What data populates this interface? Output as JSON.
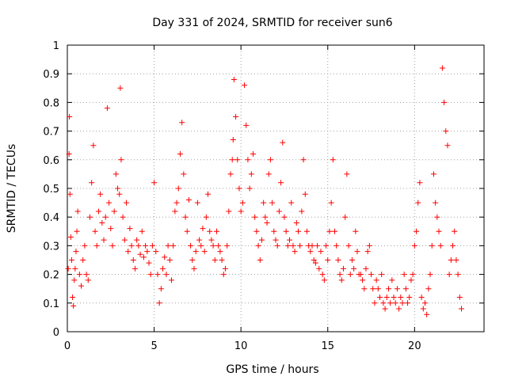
{
  "chart_data": {
    "type": "scatter",
    "title": "Day 331 of 2024, SRMTID for receiver sun6",
    "xlabel": "GPS time / hours",
    "ylabel": "SRMTID / TECUs",
    "xlim": [
      0,
      24
    ],
    "ylim": [
      0,
      1
    ],
    "x_ticks": [
      0,
      5,
      10,
      15,
      20
    ],
    "x_tick_labels": [
      "0",
      "5",
      "10",
      "15",
      "20"
    ],
    "y_ticks": [
      0,
      0.1,
      0.2,
      0.3,
      0.4,
      0.5,
      0.6,
      0.7,
      0.8,
      0.9,
      1
    ],
    "y_tick_labels": [
      "0",
      "0.1",
      "0.2",
      "0.3",
      "0.4",
      "0.5",
      "0.6",
      "0.7",
      "0.8",
      "0.9",
      "1"
    ],
    "grid": true,
    "marker": "plus",
    "marker_color": "#ff0000",
    "series": [
      {
        "name": "SRMTID",
        "color": "#ff0000",
        "x": [
          0.05,
          0.1,
          0.12,
          0.15,
          0.2,
          0.25,
          0.3,
          0.35,
          0.4,
          0.45,
          0.5,
          0.55,
          0.6,
          0.7,
          0.8,
          0.9,
          1.0,
          1.1,
          1.2,
          1.3,
          1.4,
          1.5,
          1.6,
          1.7,
          1.8,
          1.9,
          2.0,
          2.1,
          2.2,
          2.3,
          2.4,
          2.5,
          2.6,
          2.7,
          2.8,
          2.9,
          3.0,
          3.05,
          3.1,
          3.2,
          3.3,
          3.4,
          3.5,
          3.6,
          3.7,
          3.8,
          3.9,
          4.0,
          4.1,
          4.2,
          4.3,
          4.4,
          4.5,
          4.6,
          4.7,
          4.8,
          4.9,
          5.0,
          5.1,
          5.2,
          5.3,
          5.4,
          5.5,
          5.6,
          5.7,
          5.8,
          5.9,
          6.0,
          6.1,
          6.2,
          6.3,
          6.4,
          6.5,
          6.6,
          6.7,
          6.8,
          6.9,
          7.0,
          7.1,
          7.2,
          7.3,
          7.4,
          7.5,
          7.6,
          7.7,
          7.8,
          7.9,
          8.0,
          8.1,
          8.2,
          8.3,
          8.4,
          8.5,
          8.6,
          8.7,
          8.8,
          8.9,
          9.0,
          9.1,
          9.2,
          9.3,
          9.4,
          9.5,
          9.55,
          9.6,
          9.7,
          9.8,
          9.9,
          10.0,
          10.1,
          10.2,
          10.3,
          10.4,
          10.5,
          10.6,
          10.7,
          10.8,
          10.9,
          11.0,
          11.1,
          11.2,
          11.3,
          11.4,
          11.5,
          11.6,
          11.7,
          11.8,
          11.9,
          12.0,
          12.1,
          12.2,
          12.3,
          12.4,
          12.5,
          12.6,
          12.7,
          12.8,
          12.9,
          13.0,
          13.1,
          13.2,
          13.3,
          13.4,
          13.5,
          13.6,
          13.7,
          13.8,
          13.9,
          14.0,
          14.1,
          14.2,
          14.3,
          14.4,
          14.5,
          14.6,
          14.7,
          14.8,
          14.9,
          15.0,
          15.1,
          15.2,
          15.3,
          15.4,
          15.5,
          15.6,
          15.7,
          15.8,
          15.9,
          16.0,
          16.1,
          16.2,
          16.3,
          16.4,
          16.5,
          16.6,
          16.7,
          16.8,
          16.9,
          17.0,
          17.1,
          17.2,
          17.3,
          17.4,
          17.5,
          17.6,
          17.7,
          17.8,
          17.9,
          18.0,
          18.1,
          18.2,
          18.3,
          18.4,
          18.5,
          18.6,
          18.7,
          18.8,
          18.9,
          19.0,
          19.1,
          19.2,
          19.3,
          19.4,
          19.5,
          19.6,
          19.7,
          19.8,
          19.9,
          20.0,
          20.1,
          20.2,
          20.3,
          20.4,
          20.5,
          20.6,
          20.7,
          20.8,
          20.9,
          21.0,
          21.1,
          21.2,
          21.3,
          21.4,
          21.5,
          21.6,
          21.7,
          21.8,
          21.9,
          22.0,
          22.1,
          22.2,
          22.3,
          22.4,
          22.5,
          22.6,
          22.7
        ],
        "y": [
          0.22,
          0.62,
          0.75,
          0.48,
          0.33,
          0.25,
          0.12,
          0.09,
          0.18,
          0.22,
          0.28,
          0.35,
          0.42,
          0.2,
          0.16,
          0.25,
          0.3,
          0.2,
          0.18,
          0.4,
          0.52,
          0.65,
          0.35,
          0.3,
          0.42,
          0.48,
          0.38,
          0.32,
          0.4,
          0.78,
          0.45,
          0.36,
          0.3,
          0.42,
          0.55,
          0.5,
          0.48,
          0.85,
          0.6,
          0.4,
          0.32,
          0.45,
          0.28,
          0.36,
          0.3,
          0.25,
          0.22,
          0.32,
          0.3,
          0.27,
          0.35,
          0.26,
          0.3,
          0.28,
          0.24,
          0.2,
          0.3,
          0.52,
          0.28,
          0.2,
          0.1,
          0.15,
          0.22,
          0.26,
          0.2,
          0.3,
          0.25,
          0.18,
          0.3,
          0.42,
          0.45,
          0.5,
          0.62,
          0.73,
          0.55,
          0.4,
          0.35,
          0.46,
          0.3,
          0.25,
          0.22,
          0.28,
          0.45,
          0.32,
          0.3,
          0.36,
          0.28,
          0.4,
          0.48,
          0.35,
          0.32,
          0.3,
          0.25,
          0.35,
          0.3,
          0.28,
          0.25,
          0.2,
          0.22,
          0.3,
          0.42,
          0.55,
          0.6,
          0.67,
          0.88,
          0.75,
          0.6,
          0.5,
          0.42,
          0.45,
          0.86,
          0.72,
          0.6,
          0.5,
          0.55,
          0.62,
          0.4,
          0.35,
          0.3,
          0.25,
          0.32,
          0.45,
          0.4,
          0.38,
          0.55,
          0.6,
          0.45,
          0.35,
          0.32,
          0.3,
          0.42,
          0.52,
          0.66,
          0.4,
          0.35,
          0.3,
          0.32,
          0.45,
          0.3,
          0.28,
          0.38,
          0.35,
          0.3,
          0.42,
          0.6,
          0.48,
          0.35,
          0.3,
          0.28,
          0.3,
          0.25,
          0.24,
          0.3,
          0.22,
          0.28,
          0.2,
          0.18,
          0.3,
          0.25,
          0.35,
          0.45,
          0.6,
          0.35,
          0.3,
          0.25,
          0.2,
          0.18,
          0.22,
          0.4,
          0.55,
          0.3,
          0.2,
          0.25,
          0.22,
          0.35,
          0.28,
          0.2,
          0.2,
          0.18,
          0.15,
          0.22,
          0.28,
          0.3,
          0.2,
          0.15,
          0.1,
          0.18,
          0.15,
          0.12,
          0.2,
          0.1,
          0.08,
          0.12,
          0.15,
          0.1,
          0.18,
          0.12,
          0.1,
          0.15,
          0.08,
          0.12,
          0.1,
          0.2,
          0.15,
          0.1,
          0.12,
          0.18,
          0.2,
          0.3,
          0.35,
          0.45,
          0.52,
          0.12,
          0.08,
          0.1,
          0.06,
          0.15,
          0.2,
          0.3,
          0.55,
          0.45,
          0.4,
          0.35,
          0.3,
          0.92,
          0.8,
          0.7,
          0.65,
          0.2,
          0.25,
          0.3,
          0.35,
          0.25,
          0.2,
          0.12,
          0.08
        ]
      }
    ]
  }
}
